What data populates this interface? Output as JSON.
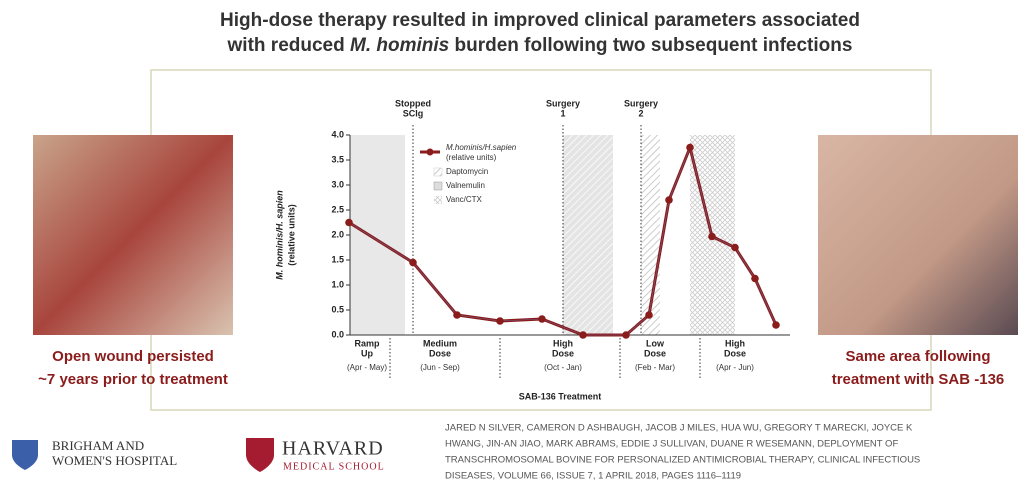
{
  "header": {
    "line1": "High-dose therapy resulted in improved clinical parameters associated",
    "line2_start": "with reduced ",
    "line2_italic": "M. hominis",
    "line2_end": " burden following two subsequent infections"
  },
  "captions": {
    "left": [
      "Open wound persisted",
      "~7 years  prior to treatment"
    ],
    "right": [
      "Same area following",
      "treatment with SAB -136"
    ]
  },
  "chart_data": {
    "type": "line",
    "y_label": [
      "M. hominis/H. sapien",
      "(relative units)"
    ],
    "x_label": "SAB-136 Treatment",
    "ylim": [
      0,
      4
    ],
    "yticks": [
      {
        "value": 0,
        "label": "0.0"
      },
      0.5,
      {
        "value": 1,
        "label": "1.0"
      },
      1.5,
      {
        "value": 2,
        "label": "2.0"
      },
      2.5,
      {
        "value": 3,
        "label": "3.0"
      },
      3.5,
      {
        "value": 4,
        "label": "4.0"
      }
    ],
    "series": [
      {
        "name": "M.hominis/H.sapien",
        "unit": "(relative units)",
        "color": "#8b1c1c",
        "values": [
          2.25,
          1.45,
          0.4,
          0.28,
          0.32,
          0.0,
          0.0,
          0.4,
          2.7,
          3.75,
          1.97,
          1.75,
          1.13,
          0.2
        ]
      }
    ],
    "legend_items": [
      "Daptomycin",
      "Valnemulin",
      "Vanc/CTX"
    ],
    "annotations": [
      [
        "Stopped",
        "SCIg"
      ],
      [
        "Surgery",
        "1"
      ],
      [
        "Surgery",
        "2"
      ]
    ],
    "phases": [
      {
        "name": [
          "Ramp",
          "Up"
        ],
        "period": "(Apr - May)"
      },
      {
        "name": [
          "Medium",
          "Dose"
        ],
        "period": "(Jun - Sep)"
      },
      {
        "name": [
          "High",
          "Dose"
        ],
        "period": "(Oct - Jan)"
      },
      {
        "name": [
          "Low",
          "Dose"
        ],
        "period": "(Feb - Mar)"
      },
      {
        "name": [
          "High",
          "Dose"
        ],
        "period": "(Apr - Jun)"
      }
    ]
  },
  "logos": {
    "brigham": [
      "BRIGHAM AND",
      "WOMEN'S HOSPITAL"
    ],
    "harvard": [
      "HARVARD",
      "MEDICAL SCHOOL"
    ]
  },
  "citation": [
    "JARED N SILVER, CAMERON D ASHBAUGH, JACOB J MILES, HUA WU, GREGORY T MARECKI, JOYCE K",
    "HWANG, JIN-AN JIAO, MARK ABRAMS, EDDIE J SULLIVAN, DUANE R WESEMANN, DEPLOYMENT OF",
    "TRANSCHROMOSOMAL BOVINE FOR PERSONALIZED ANTIMICROBIAL THERAPY, CLINICAL INFECTIOUS",
    "DISEASES, VOLUME 66, ISSUE 7, 1 APRIL 2018, PAGES 1116–1119"
  ]
}
